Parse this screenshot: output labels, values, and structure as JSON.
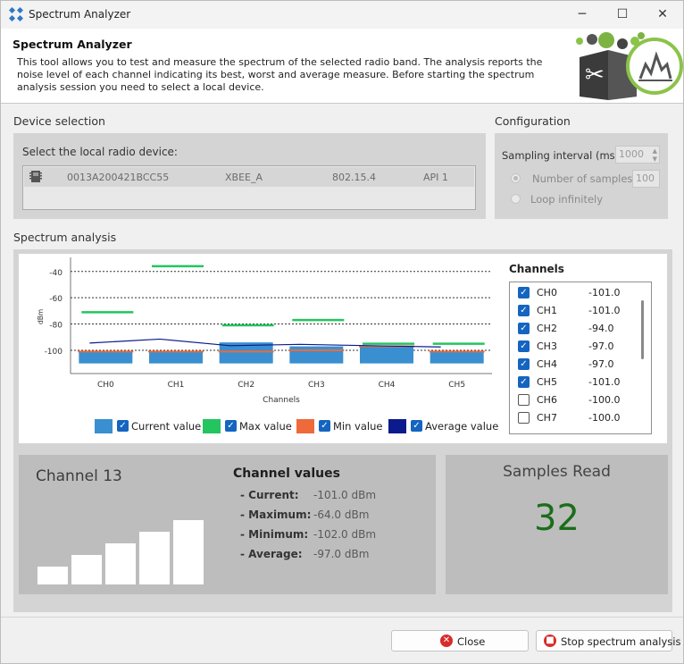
{
  "window": {
    "title": "Spectrum Analyzer",
    "minimize": "─",
    "maximize": "☐",
    "close": "✕"
  },
  "header": {
    "title": "Spectrum Analyzer",
    "description": "This tool allows you to test and measure the spectrum of the selected radio band. The analysis reports the noise level of each channel indicating its best, worst and average measure. Before starting the spectrum analysis session you need to select a local device."
  },
  "device_selection": {
    "section_label": "Device selection",
    "prompt": "Select the local radio device:",
    "devices": [
      {
        "address": "0013A200421BCC55",
        "name": "XBEE_A",
        "protocol": "802.15.4",
        "mode": "API 1"
      }
    ]
  },
  "configuration": {
    "section_label": "Configuration",
    "sampling_label": "Sampling interval (ms):",
    "sampling_value": "1000",
    "num_samples_label": "Number of samples:",
    "num_samples_value": "100",
    "loop_label": "Loop infinitely",
    "selected_mode": "Number of samples"
  },
  "spectrum": {
    "section_label": "Spectrum analysis",
    "legend": {
      "current": "Current value",
      "max": "Max value",
      "min": "Min value",
      "average": "Average value"
    },
    "colors": {
      "current": "#3a8fd0",
      "max": "#22c55e",
      "min": "#ee6a3a",
      "average": "#0b1a8c"
    },
    "channels_title": "Channels",
    "channels": [
      {
        "name": "CH0",
        "value": "-101.0",
        "checked": true
      },
      {
        "name": "CH1",
        "value": "-101.0",
        "checked": true
      },
      {
        "name": "CH2",
        "value": "-94.0",
        "checked": true
      },
      {
        "name": "CH3",
        "value": "-97.0",
        "checked": true
      },
      {
        "name": "CH4",
        "value": "-97.0",
        "checked": true
      },
      {
        "name": "CH5",
        "value": "-101.0",
        "checked": true
      },
      {
        "name": "CH6",
        "value": "-100.0",
        "checked": false
      },
      {
        "name": "CH7",
        "value": "-100.0",
        "checked": false
      }
    ]
  },
  "chart_data": {
    "type": "bar",
    "categories": [
      "CH0",
      "CH1",
      "CH2",
      "CH3",
      "CH4",
      "CH5"
    ],
    "series": [
      {
        "name": "Current value",
        "values": [
          -101,
          -101,
          -94,
          -97,
          -97,
          -101
        ]
      },
      {
        "name": "Max value",
        "values": [
          -71,
          -36,
          -81,
          -77,
          -95,
          -95
        ]
      },
      {
        "name": "Min value",
        "values": [
          -101,
          -101,
          -101,
          -100,
          -97,
          -101
        ]
      },
      {
        "name": "Average value",
        "values": [
          -94.5,
          -91.5,
          -96.5,
          -95.5,
          -96.5,
          -97.5
        ]
      }
    ],
    "xlabel": "Channels",
    "ylabel": "dBm",
    "yticks": [
      -40,
      -60,
      -80,
      -100
    ],
    "ylim": [
      -115,
      -32
    ],
    "grid": "dotted"
  },
  "channel_detail": {
    "title": "Channel 13",
    "values_title": "Channel values",
    "current_label": "- Current:",
    "current_value": "-101.0 dBm",
    "maximum_label": "- Maximum:",
    "maximum_value": "-64.0 dBm",
    "minimum_label": "- Minimum:",
    "minimum_value": "-102.0 dBm",
    "average_label": "- Average:",
    "average_value": "-97.0 dBm",
    "signal_bars": 5
  },
  "samples": {
    "title": "Samples Read",
    "value": "32"
  },
  "footer": {
    "close_label": "Close",
    "stop_label": "Stop spectrum analysis"
  }
}
